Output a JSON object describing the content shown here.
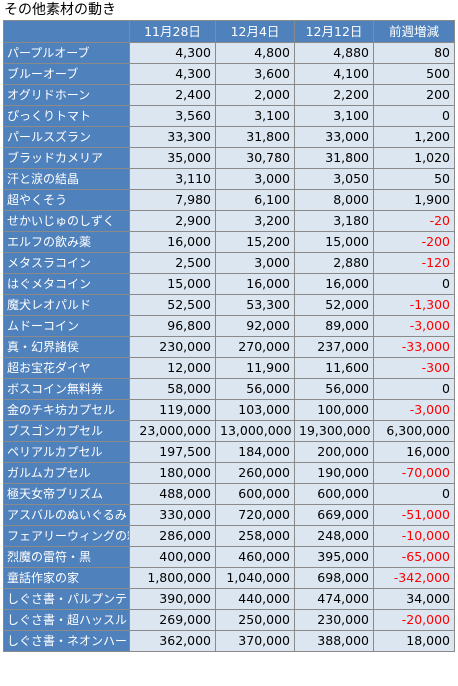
{
  "title": "その他素材の動き",
  "headers": [
    "",
    "11月28日",
    "12月4日",
    "12月12日",
    "前週増減"
  ],
  "rows": [
    {
      "name": "パープルオーブ",
      "v1": "4,300",
      "v2": "4,800",
      "v3": "4,880",
      "diff": "80",
      "neg": false
    },
    {
      "name": "ブルーオーブ",
      "v1": "4,300",
      "v2": "3,600",
      "v3": "4,100",
      "diff": "500",
      "neg": false
    },
    {
      "name": "オグリドホーン",
      "v1": "2,400",
      "v2": "2,000",
      "v3": "2,200",
      "diff": "200",
      "neg": false
    },
    {
      "name": "ぴっくりトマト",
      "v1": "3,560",
      "v2": "3,100",
      "v3": "3,100",
      "diff": "0",
      "neg": false
    },
    {
      "name": "パールスズラン",
      "v1": "33,300",
      "v2": "31,800",
      "v3": "33,000",
      "diff": "1,200",
      "neg": false
    },
    {
      "name": "ブラッドカメリア",
      "v1": "35,000",
      "v2": "30,780",
      "v3": "31,800",
      "diff": "1,020",
      "neg": false
    },
    {
      "name": "汗と涙の結晶",
      "v1": "3,110",
      "v2": "3,000",
      "v3": "3,050",
      "diff": "50",
      "neg": false
    },
    {
      "name": "超やくそう",
      "v1": "7,980",
      "v2": "6,100",
      "v3": "8,000",
      "diff": "1,900",
      "neg": false
    },
    {
      "name": "せかいじゅのしずく",
      "v1": "2,900",
      "v2": "3,200",
      "v3": "3,180",
      "diff": "-20",
      "neg": true
    },
    {
      "name": "エルフの飲み薬",
      "v1": "16,000",
      "v2": "15,200",
      "v3": "15,000",
      "diff": "-200",
      "neg": true
    },
    {
      "name": "メタスラコイン",
      "v1": "2,500",
      "v2": "3,000",
      "v3": "2,880",
      "diff": "-120",
      "neg": true
    },
    {
      "name": "はぐメタコイン",
      "v1": "15,000",
      "v2": "16,000",
      "v3": "16,000",
      "diff": "0",
      "neg": false
    },
    {
      "name": "魔犬レオパルド",
      "v1": "52,500",
      "v2": "53,300",
      "v3": "52,000",
      "diff": "-1,300",
      "neg": true
    },
    {
      "name": "ムドーコイン",
      "v1": "96,800",
      "v2": "92,000",
      "v3": "89,000",
      "diff": "-3,000",
      "neg": true
    },
    {
      "name": "真・幻界諸侯",
      "v1": "230,000",
      "v2": "270,000",
      "v3": "237,000",
      "diff": "-33,000",
      "neg": true
    },
    {
      "name": "超お宝花ダイヤ",
      "v1": "12,000",
      "v2": "11,900",
      "v3": "11,600",
      "diff": "-300",
      "neg": true
    },
    {
      "name": "ボスコイン無料券",
      "v1": "58,000",
      "v2": "56,000",
      "v3": "56,000",
      "diff": "0",
      "neg": false
    },
    {
      "name": "金のチキ坊カプセル",
      "v1": "119,000",
      "v2": "103,000",
      "v3": "100,000",
      "diff": "-3,000",
      "neg": true
    },
    {
      "name": "ブスゴンカプセル",
      "v1": "23,000,000",
      "v2": "13,000,000",
      "v3": "19,300,000",
      "diff": "6,300,000",
      "neg": false
    },
    {
      "name": "ペリアルカプセル",
      "v1": "197,500",
      "v2": "184,000",
      "v3": "200,000",
      "diff": "16,000",
      "neg": false
    },
    {
      "name": "ガルムカプセル",
      "v1": "180,000",
      "v2": "260,000",
      "v3": "190,000",
      "diff": "-70,000",
      "neg": true
    },
    {
      "name": "極天女帝ブリズム",
      "v1": "488,000",
      "v2": "600,000",
      "v3": "600,000",
      "diff": "0",
      "neg": false
    },
    {
      "name": "アスバルのぬいぐるみ",
      "v1": "330,000",
      "v2": "720,000",
      "v3": "669,000",
      "diff": "-51,000",
      "neg": true
    },
    {
      "name": "フェアリーウィングの箱",
      "v1": "286,000",
      "v2": "258,000",
      "v3": "248,000",
      "diff": "-10,000",
      "neg": true
    },
    {
      "name": "烈魔の雷符・黒",
      "v1": "400,000",
      "v2": "460,000",
      "v3": "395,000",
      "diff": "-65,000",
      "neg": true
    },
    {
      "name": "童話作家の家",
      "v1": "1,800,000",
      "v2": "1,040,000",
      "v3": "698,000",
      "diff": "-342,000",
      "neg": true
    },
    {
      "name": "しぐさ書・パルプンテ",
      "v1": "390,000",
      "v2": "440,000",
      "v3": "474,000",
      "diff": "34,000",
      "neg": false
    },
    {
      "name": "しぐさ書・超ハッスル",
      "v1": "269,000",
      "v2": "250,000",
      "v3": "230,000",
      "diff": "-20,000",
      "neg": true
    },
    {
      "name": "しぐさ書・ネオンハート",
      "v1": "362,000",
      "v2": "370,000",
      "v3": "388,000",
      "diff": "18,000",
      "neg": false
    }
  ]
}
